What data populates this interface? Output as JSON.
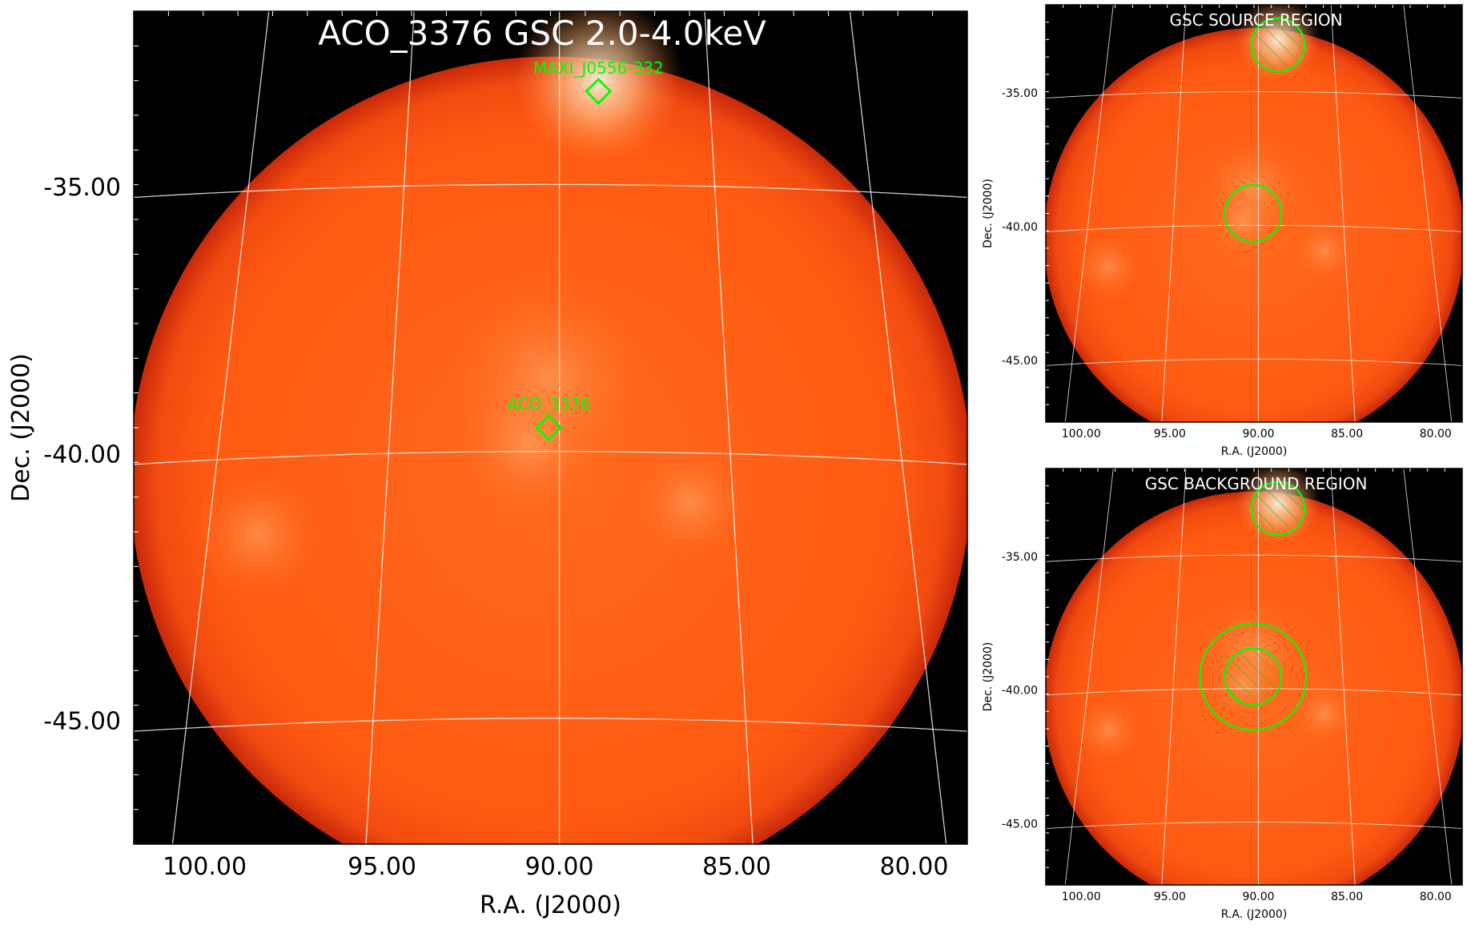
{
  "colors": {
    "background": "#000000",
    "disk": "#ff5a14",
    "disk_edge": "#c8280a",
    "highlight": "#ffe2c4",
    "grid": "#ffffff",
    "region": "#00ff00"
  },
  "chart_data": [
    {
      "type": "heatmap",
      "panel": "main",
      "title": "ACO_3376 GSC 2.0-4.0keV",
      "xlabel": "R.A. (J2000)",
      "ylabel": "Dec. (J2000)",
      "xticks": [
        "100.00",
        "95.00",
        "90.00",
        "85.00",
        "80.00"
      ],
      "yticks": [
        "-35.00",
        "-40.00",
        "-45.00"
      ],
      "xlim": [
        102,
        78.5
      ],
      "ylim": [
        -47.3,
        -31.7
      ],
      "sources": [
        {
          "name": "MAXI_J0556-332",
          "ra": 88.9,
          "dec": -33.2
        },
        {
          "name": "ACO_3376",
          "ra": 90.3,
          "dec": -39.5
        }
      ]
    },
    {
      "type": "heatmap",
      "panel": "source-region",
      "title": "GSC SOURCE REGION",
      "xlabel": "R.A. (J2000)",
      "ylabel": "Dec. (J2000)",
      "xticks": [
        "100.00",
        "95.00",
        "90.00",
        "85.00",
        "80.00"
      ],
      "yticks": [
        "-35.00",
        "-40.00",
        "-45.00"
      ],
      "xlim": [
        102,
        78.5
      ],
      "ylim": [
        -47.3,
        -31.7
      ],
      "regions": [
        {
          "ra": 88.9,
          "dec": -33.2,
          "radius_deg": 1.5,
          "hatched": true
        },
        {
          "ra": 90.3,
          "dec": -39.5,
          "radius_deg": 1.6,
          "hatched": false
        }
      ]
    },
    {
      "type": "heatmap",
      "panel": "background-region",
      "title": "GSC BACKGROUND REGION",
      "xlabel": "R.A. (J2000)",
      "ylabel": "Dec. (J2000)",
      "xticks": [
        "100.00",
        "95.00",
        "90.00",
        "85.00",
        "80.00"
      ],
      "yticks": [
        "-35.00",
        "-40.00",
        "-45.00"
      ],
      "xlim": [
        102,
        78.5
      ],
      "ylim": [
        -47.3,
        -31.7
      ],
      "regions": [
        {
          "ra": 88.9,
          "dec": -33.2,
          "radius_deg": 1.5,
          "hatched": true
        },
        {
          "ra": 90.3,
          "dec": -39.5,
          "radius_deg": 1.6,
          "hatched": true
        },
        {
          "ra": 90.3,
          "dec": -39.5,
          "radius_deg": 3.0,
          "hatched": false
        }
      ]
    }
  ]
}
